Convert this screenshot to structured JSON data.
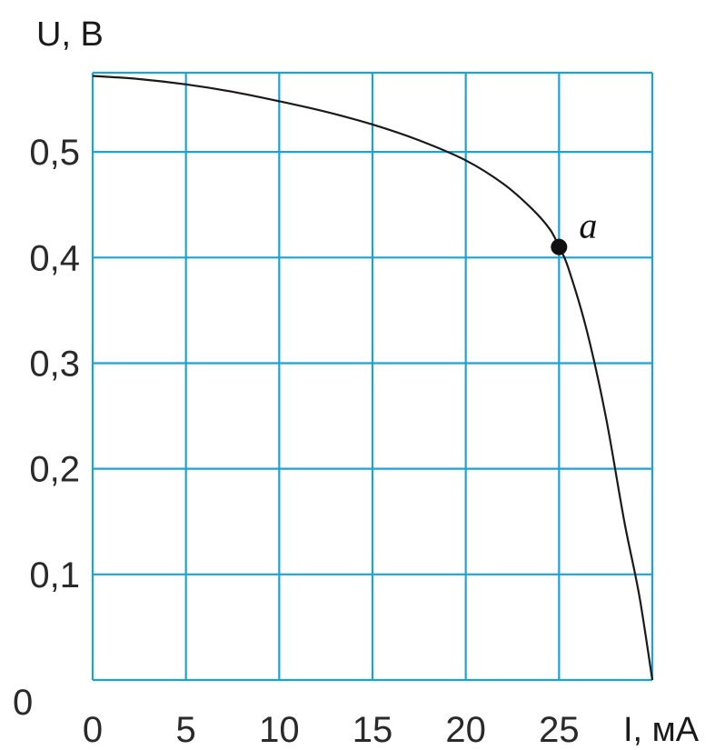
{
  "chart_data": {
    "type": "line",
    "title": "",
    "xlabel": "I, мА",
    "ylabel": "U, В",
    "xlim": [
      0,
      30
    ],
    "ylim": [
      0,
      0.575
    ],
    "grid": true,
    "x_ticks": [
      {
        "value": 0,
        "label": "0"
      },
      {
        "value": 5,
        "label": "5"
      },
      {
        "value": 10,
        "label": "10"
      },
      {
        "value": 15,
        "label": "15"
      },
      {
        "value": 20,
        "label": "20"
      },
      {
        "value": 25,
        "label": "25"
      }
    ],
    "y_ticks": [
      {
        "value": 0,
        "label": "0"
      },
      {
        "value": 0.1,
        "label": "0,1"
      },
      {
        "value": 0.2,
        "label": "0,2"
      },
      {
        "value": 0.3,
        "label": "0,3"
      },
      {
        "value": 0.4,
        "label": "0,4"
      },
      {
        "value": 0.5,
        "label": "0,5"
      }
    ],
    "series": [
      {
        "x": [
          0,
          2.5,
          5,
          7.5,
          10,
          12.5,
          15,
          17.5,
          20,
          22,
          23.5,
          24.5,
          25,
          25.5,
          26.5,
          27.5,
          28.5,
          29.3,
          30
        ],
        "y": [
          0.572,
          0.569,
          0.564,
          0.557,
          0.548,
          0.538,
          0.526,
          0.511,
          0.492,
          0.47,
          0.447,
          0.427,
          0.41,
          0.39,
          0.33,
          0.25,
          0.15,
          0.08,
          0.0
        ]
      }
    ],
    "annotations": [
      {
        "label": "a",
        "x": 25,
        "y": 0.41
      }
    ]
  }
}
